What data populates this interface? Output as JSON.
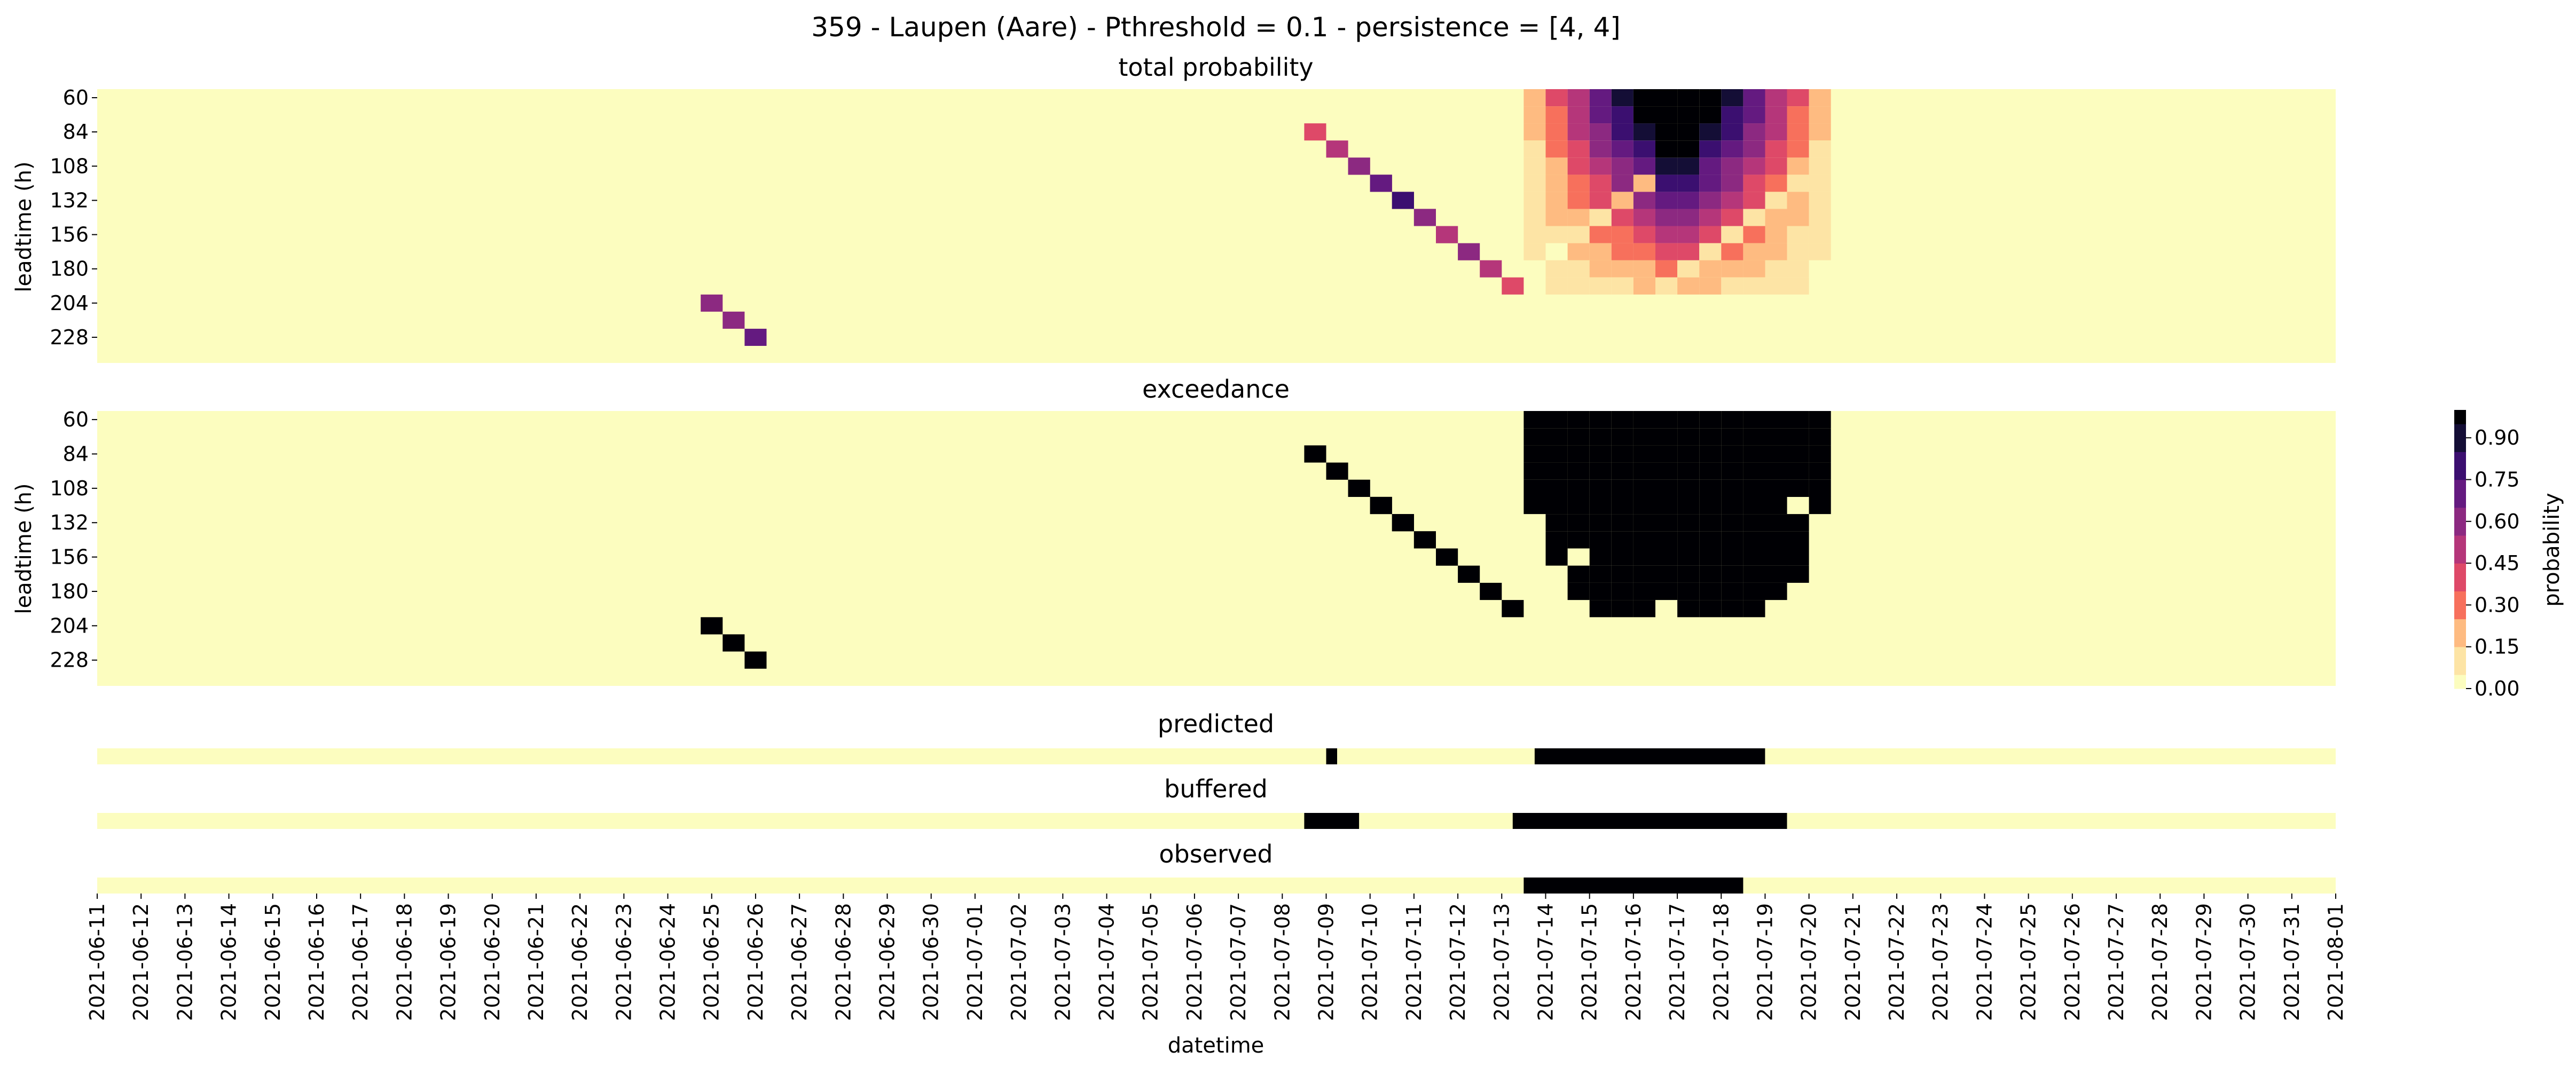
{
  "title": "359 - Laupen (Aare) - Pthreshold = 0.1 - persistence = [4, 4]",
  "colors": {
    "background": "#fcfdbf",
    "exceed": "#000004",
    "colormap": [
      "#fcfdbf",
      "#fde4a5",
      "#febb81",
      "#f7705c",
      "#de4968",
      "#b5367a",
      "#8c2981",
      "#641a80",
      "#3b0f70",
      "#140e36",
      "#000004"
    ]
  },
  "chart_data": {
    "type": "heatmap",
    "x_dates": [
      "2021-06-11",
      "2021-06-12",
      "2021-06-13",
      "2021-06-14",
      "2021-06-15",
      "2021-06-16",
      "2021-06-17",
      "2021-06-18",
      "2021-06-19",
      "2021-06-20",
      "2021-06-21",
      "2021-06-22",
      "2021-06-23",
      "2021-06-24",
      "2021-06-25",
      "2021-06-26",
      "2021-06-27",
      "2021-06-28",
      "2021-06-29",
      "2021-06-30",
      "2021-07-01",
      "2021-07-02",
      "2021-07-03",
      "2021-07-04",
      "2021-07-05",
      "2021-07-06",
      "2021-07-07",
      "2021-07-08",
      "2021-07-09",
      "2021-07-10",
      "2021-07-11",
      "2021-07-12",
      "2021-07-13",
      "2021-07-14",
      "2021-07-15",
      "2021-07-16",
      "2021-07-17",
      "2021-07-18",
      "2021-07-19",
      "2021-07-20",
      "2021-07-21",
      "2021-07-22",
      "2021-07-23",
      "2021-07-24",
      "2021-07-25",
      "2021-07-26",
      "2021-07-27",
      "2021-07-28",
      "2021-07-29",
      "2021-07-30",
      "2021-07-31",
      "2021-08-01"
    ],
    "xlabel": "datetime",
    "colorbar": {
      "label": "probability",
      "ticks": [
        "0.00",
        "0.15",
        "0.30",
        "0.45",
        "0.60",
        "0.75",
        "0.90"
      ],
      "range": [
        0,
        1
      ]
    },
    "panels": [
      {
        "title": "total probability",
        "ylabel": "leadtime (h)",
        "yticks": [
          "60",
          "84",
          "108",
          "132",
          "156",
          "180",
          "204",
          "228"
        ],
        "leadtimes": [
          60,
          72,
          84,
          96,
          108,
          120,
          132,
          144,
          156,
          168,
          180,
          192,
          204,
          216,
          228,
          240
        ],
        "cells": [
          [
            -2,
            [
              0.1,
              0.1
            ]
          ],
          [
            -1,
            [
              0.15,
              0.2
            ]
          ],
          [
            0,
            [
              0.35,
              0.25,
              0.15
            ]
          ],
          [
            1,
            [
              0.5,
              0.35,
              0.2
            ]
          ],
          [
            2,
            [
              0.55,
              0.4,
              0.25
            ]
          ],
          [
            3,
            [
              0.6,
              0.5,
              0.35
            ]
          ],
          [
            4,
            [
              0.7,
              0.55,
              0.4
            ]
          ],
          [
            5,
            [
              0.75,
              0.65,
              0.5,
              0.3
            ]
          ],
          [
            6,
            [
              0.85,
              0.7,
              0.55,
              0.4
            ]
          ],
          [
            7,
            [
              0.9,
              0.75,
              0.6,
              0.45
            ]
          ],
          [
            8,
            [
              0.95,
              0.8,
              0.65,
              0.5,
              0.3
            ]
          ],
          [
            10,
            [
              0.6,
              0.45,
              0.3
            ]
          ],
          [
            12,
            [
              0.55,
              0.4
            ]
          ],
          [
            13,
            [
              0.6,
              0.45,
              0.3
            ]
          ]
        ]
      },
      {
        "title": "exceedance",
        "ylabel": "leadtime (h)",
        "yticks": [
          "60",
          "84",
          "108",
          "132",
          "156",
          "180",
          "204",
          "228"
        ]
      },
      {
        "title": "predicted",
        "segments": [
          [
            "2021-07-09 00:00",
            "2021-07-09 06:00"
          ],
          [
            "2021-07-13 18:00",
            "2021-07-19 00:00"
          ]
        ]
      },
      {
        "title": "buffered",
        "segments": [
          [
            "2021-07-08 12:00",
            "2021-07-09 18:00"
          ],
          [
            "2021-07-13 06:00",
            "2021-07-19 12:00"
          ]
        ]
      },
      {
        "title": "observed",
        "segments": [
          [
            "2021-07-13 12:00",
            "2021-07-18 12:00"
          ]
        ]
      }
    ]
  }
}
